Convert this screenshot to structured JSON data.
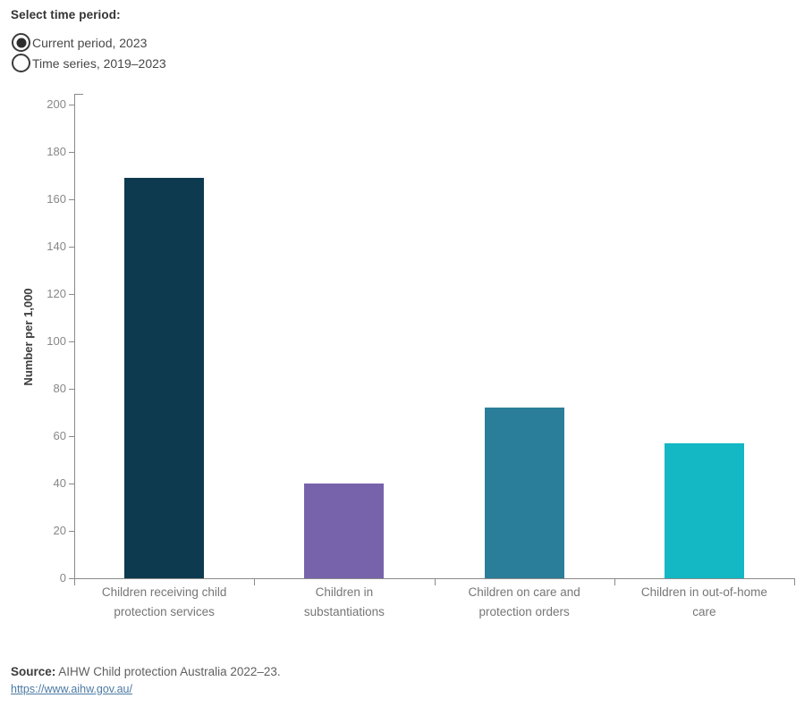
{
  "controls": {
    "title": "Select time period:",
    "options": [
      {
        "label": "Current period, 2023",
        "selected": true
      },
      {
        "label": "Time series, 2019–2023",
        "selected": false
      }
    ]
  },
  "chart_data": {
    "type": "bar",
    "title": "",
    "categories": [
      "Children receiving child\nprotection services",
      "Children in\nsubstantiations",
      "Children on care and\nprotection orders",
      "Children in out-of-home\ncare"
    ],
    "values": [
      169,
      40,
      72,
      57
    ],
    "bar_colors": [
      "#0e3a50",
      "#7763ab",
      "#2b7e99",
      "#14b7c4"
    ],
    "xlabel": "",
    "ylabel": "Number per 1,000",
    "ylim": [
      0,
      200
    ],
    "ytick_step": 20,
    "grid": false,
    "legend": "none"
  },
  "footer": {
    "source_label": "Source:",
    "source_text": " AIHW Child protection Australia 2022–23.",
    "link": "https://www.aihw.gov.au/",
    "link_color": "#4c7aa5"
  }
}
